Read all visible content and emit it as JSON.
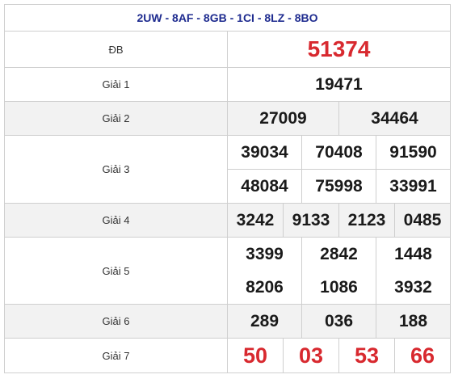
{
  "header": {
    "codes": "2UW - 8AF - 8GB - 1CI - 8LZ - 8BO"
  },
  "prizes": [
    {
      "label": "ĐB",
      "numbers": [
        "51374"
      ]
    },
    {
      "label": "Giải 1",
      "numbers": [
        "19471"
      ]
    },
    {
      "label": "Giải 2",
      "numbers": [
        "27009",
        "34464"
      ]
    },
    {
      "label": "Giải 3",
      "numbers": [
        "39034",
        "70408",
        "91590",
        "48084",
        "75998",
        "33991"
      ]
    },
    {
      "label": "Giải 4",
      "numbers": [
        "3242",
        "9133",
        "2123",
        "0485"
      ]
    },
    {
      "label": "Giải 5",
      "numbers": [
        "3399",
        "2842",
        "1448",
        "8206",
        "1086",
        "3932"
      ]
    },
    {
      "label": "Giải 6",
      "numbers": [
        "289",
        "036",
        "188"
      ]
    },
    {
      "label": "Giải 7",
      "numbers": [
        "50",
        "03",
        "53",
        "66"
      ]
    }
  ],
  "colors": {
    "special": "#d8292f",
    "header_text": "#1e2b8f",
    "alt_row": "#f2f2f2"
  }
}
